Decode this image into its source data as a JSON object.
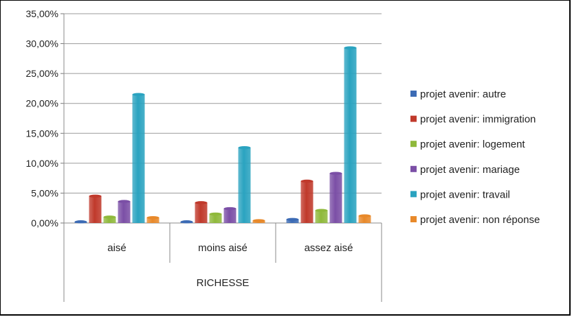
{
  "chart_data": {
    "type": "bar",
    "xlabel": "RICHESSE",
    "categories": [
      "aisé",
      "moins aisé",
      "assez aisé"
    ],
    "ylim": [
      0,
      35
    ],
    "yticks": [
      "0,00%",
      "5,00%",
      "10,00%",
      "15,00%",
      "20,00%",
      "25,00%",
      "30,00%",
      "35,00%"
    ],
    "grid": true,
    "legend_position": "right",
    "series": [
      {
        "name": "projet avenir: autre",
        "values": [
          0.2,
          0.2,
          0.6
        ],
        "color": "#3c6bb5"
      },
      {
        "name": "projet avenir: immigration",
        "values": [
          4.5,
          3.4,
          7.0
        ],
        "color": "#c0392b"
      },
      {
        "name": "projet avenir: logement",
        "values": [
          1.0,
          1.5,
          2.1
        ],
        "color": "#8fb93b"
      },
      {
        "name": "projet avenir: mariage",
        "values": [
          3.6,
          2.4,
          8.3
        ],
        "color": "#7b4fa6"
      },
      {
        "name": "projet avenir: travail",
        "values": [
          21.5,
          12.6,
          29.3
        ],
        "color": "#2aa3c0"
      },
      {
        "name": "projet avenir: non réponse",
        "values": [
          0.9,
          0.4,
          1.2
        ],
        "color": "#e8892a"
      }
    ]
  }
}
